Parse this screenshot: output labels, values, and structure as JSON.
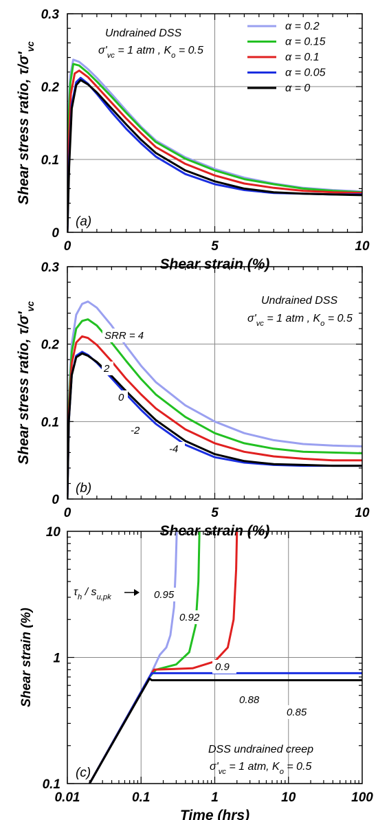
{
  "chart_data": [
    {
      "type": "line",
      "panel_label": "(a)",
      "xlabel": "Shear strain (%)",
      "ylabel": "Shear stress ratio, τ/σ'_vc",
      "xlim": [
        0,
        10
      ],
      "ylim": [
        0,
        0.3
      ],
      "xticks": [
        "0",
        "5",
        "10"
      ],
      "yticks": [
        "0",
        "0.1",
        "0.2",
        "0.3"
      ],
      "annotation": [
        "Undrained DSS",
        "σ'vc = 1 atm , Ko = 0.5"
      ],
      "legend_position": "top-right",
      "series": [
        {
          "name": "α = 0.2",
          "color": "#9aa0f0",
          "x": [
            0,
            0.04,
            0.1,
            0.2,
            0.4,
            0.7,
            1,
            1.5,
            2,
            2.5,
            3,
            4,
            5,
            6,
            7,
            8,
            9,
            10
          ],
          "y": [
            0,
            0.17,
            0.215,
            0.237,
            0.234,
            0.224,
            0.212,
            0.19,
            0.167,
            0.145,
            0.126,
            0.103,
            0.087,
            0.075,
            0.067,
            0.061,
            0.058,
            0.056
          ]
        },
        {
          "name": "α = 0.15",
          "color": "#22c022",
          "x": [
            0,
            0.04,
            0.1,
            0.2,
            0.4,
            0.7,
            1,
            1.5,
            2,
            2.5,
            3,
            4,
            5,
            6,
            7,
            8,
            9,
            10
          ],
          "y": [
            0,
            0.15,
            0.205,
            0.231,
            0.229,
            0.219,
            0.207,
            0.186,
            0.164,
            0.143,
            0.124,
            0.101,
            0.085,
            0.073,
            0.066,
            0.06,
            0.057,
            0.055
          ]
        },
        {
          "name": "α = 0.1",
          "color": "#e02020",
          "x": [
            0,
            0.05,
            0.12,
            0.25,
            0.4,
            0.7,
            1,
            1.5,
            2,
            2.5,
            3,
            4,
            5,
            6,
            7,
            8,
            9,
            10
          ],
          "y": [
            0,
            0.12,
            0.19,
            0.218,
            0.222,
            0.213,
            0.2,
            0.178,
            0.156,
            0.136,
            0.117,
            0.094,
            0.078,
            0.067,
            0.061,
            0.057,
            0.055,
            0.054
          ]
        },
        {
          "name": "α = 0.05",
          "color": "#1a2ee0",
          "x": [
            0,
            0.06,
            0.15,
            0.3,
            0.45,
            0.7,
            1,
            1.5,
            2,
            2.5,
            3,
            4,
            5,
            6,
            7,
            8,
            9,
            10
          ],
          "y": [
            0,
            0.1,
            0.175,
            0.206,
            0.212,
            0.204,
            0.19,
            0.165,
            0.142,
            0.122,
            0.104,
            0.08,
            0.066,
            0.058,
            0.054,
            0.053,
            0.052,
            0.052
          ]
        },
        {
          "name": "α = 0",
          "color": "#000000",
          "x": [
            0,
            0.06,
            0.15,
            0.3,
            0.45,
            0.7,
            1,
            1.5,
            2,
            2.5,
            3,
            4,
            5,
            6,
            7,
            8,
            9,
            10
          ],
          "y": [
            0,
            0.09,
            0.17,
            0.202,
            0.209,
            0.203,
            0.192,
            0.17,
            0.148,
            0.127,
            0.109,
            0.085,
            0.07,
            0.06,
            0.055,
            0.053,
            0.052,
            0.051
          ]
        }
      ]
    },
    {
      "type": "line",
      "panel_label": "(b)",
      "xlabel": "Shear strain (%)",
      "ylabel": "Shear stress ratio, τ/σ'_vc",
      "xlim": [
        0,
        10
      ],
      "ylim": [
        0,
        0.3
      ],
      "xticks": [
        "0",
        "5",
        "10"
      ],
      "yticks": [
        "0",
        "0.1",
        "0.2",
        "0.3"
      ],
      "annotation": [
        "Undrained DSS",
        "σ'vc = 1 atm , Ko = 0.5"
      ],
      "curve_labels": [
        "SRR = 4",
        "2",
        "0",
        "-2",
        "-4"
      ],
      "series": [
        {
          "label": "SRR = 4",
          "color": "#9aa0f0",
          "x": [
            0,
            0.05,
            0.15,
            0.3,
            0.5,
            0.7,
            1,
            1.5,
            2,
            2.5,
            3,
            4,
            5,
            6,
            7,
            8,
            9,
            10
          ],
          "y": [
            0,
            0.13,
            0.2,
            0.238,
            0.252,
            0.255,
            0.247,
            0.224,
            0.197,
            0.172,
            0.151,
            0.121,
            0.1,
            0.085,
            0.076,
            0.071,
            0.069,
            0.068
          ]
        },
        {
          "label": "2",
          "color": "#22c022",
          "x": [
            0,
            0.05,
            0.15,
            0.3,
            0.5,
            0.7,
            1,
            1.5,
            2,
            2.5,
            3,
            4,
            5,
            6,
            7,
            8,
            9,
            10
          ],
          "y": [
            0,
            0.12,
            0.19,
            0.22,
            0.23,
            0.232,
            0.224,
            0.202,
            0.178,
            0.155,
            0.135,
            0.106,
            0.085,
            0.072,
            0.065,
            0.061,
            0.06,
            0.059
          ]
        },
        {
          "label": "0",
          "color": "#e02020",
          "x": [
            0,
            0.05,
            0.15,
            0.3,
            0.5,
            0.7,
            1,
            1.5,
            2,
            2.5,
            3,
            4,
            5,
            6,
            7,
            8,
            9,
            10
          ],
          "y": [
            0,
            0.11,
            0.175,
            0.202,
            0.21,
            0.208,
            0.199,
            0.178,
            0.155,
            0.135,
            0.117,
            0.09,
            0.072,
            0.061,
            0.055,
            0.052,
            0.05,
            0.05
          ]
        },
        {
          "label": "-2",
          "color": "#1a2ee0",
          "x": [
            0,
            0.05,
            0.15,
            0.3,
            0.5,
            0.7,
            1,
            1.5,
            2,
            2.5,
            3,
            4,
            5,
            6,
            7,
            8,
            9,
            10
          ],
          "y": [
            0,
            0.1,
            0.16,
            0.185,
            0.19,
            0.186,
            0.176,
            0.156,
            0.135,
            0.115,
            0.097,
            0.07,
            0.054,
            0.047,
            0.044,
            0.043,
            0.043,
            0.043
          ]
        },
        {
          "label": "-4",
          "color": "#000000",
          "x": [
            0,
            0.05,
            0.15,
            0.3,
            0.5,
            0.7,
            1,
            1.5,
            2,
            2.5,
            3,
            4,
            5,
            6,
            7,
            8,
            9,
            10
          ],
          "y": [
            0,
            0.1,
            0.16,
            0.183,
            0.188,
            0.185,
            0.177,
            0.159,
            0.139,
            0.12,
            0.102,
            0.075,
            0.058,
            0.049,
            0.045,
            0.044,
            0.043,
            0.043
          ]
        }
      ]
    },
    {
      "type": "line",
      "panel_label": "(c)",
      "xlabel": "Time (hrs)",
      "ylabel": "Shear strain (%)",
      "xscale": "log",
      "yscale": "log",
      "xlim": [
        0.01,
        100
      ],
      "ylim": [
        0.1,
        10
      ],
      "xticks": [
        "0.01",
        "0.1",
        "1",
        "10",
        "100"
      ],
      "yticks": [
        "0.1",
        "1",
        "10"
      ],
      "annotation": [
        "DSS undrained creep",
        "σ'vc = 1 atm, Ko = 0.5"
      ],
      "level_label": "τh / su,pk",
      "curve_labels": [
        "0.95",
        "0.92",
        "0.9",
        "0.88",
        "0.85"
      ],
      "series": [
        {
          "label": "0.95",
          "color": "#9aa0f0",
          "x": [
            0.02,
            0.13,
            0.18,
            0.22,
            0.25,
            0.28,
            0.295,
            0.305
          ],
          "y": [
            0.1,
            0.7,
            1.05,
            1.2,
            1.5,
            2.5,
            5,
            10
          ]
        },
        {
          "label": "0.92",
          "color": "#22c022",
          "x": [
            0.02,
            0.13,
            0.16,
            0.3,
            0.45,
            0.55,
            0.6,
            0.62
          ],
          "y": [
            0.1,
            0.7,
            0.8,
            0.88,
            1.1,
            1.8,
            4,
            10
          ]
        },
        {
          "label": "0.9",
          "color": "#e02020",
          "x": [
            0.02,
            0.13,
            0.15,
            0.5,
            1.0,
            1.5,
            1.8,
            1.95,
            2.0
          ],
          "y": [
            0.1,
            0.7,
            0.8,
            0.82,
            0.93,
            1.2,
            2,
            5,
            10
          ]
        },
        {
          "label": "0.88",
          "color": "#1a2ee0",
          "x": [
            0.02,
            0.13,
            0.14,
            1,
            10,
            100
          ],
          "y": [
            0.1,
            0.7,
            0.75,
            0.75,
            0.75,
            0.75
          ]
        },
        {
          "label": "0.85",
          "color": "#000000",
          "x": [
            0.02,
            0.13,
            0.14,
            1,
            10,
            100
          ],
          "y": [
            0.1,
            0.68,
            0.66,
            0.66,
            0.66,
            0.66
          ]
        }
      ]
    }
  ]
}
